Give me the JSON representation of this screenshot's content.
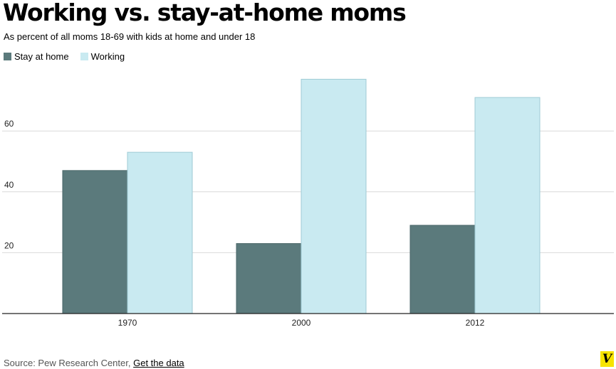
{
  "chart_data": {
    "type": "bar",
    "title": "Working vs. stay-at-home moms",
    "subtitle": "As percent of all moms 18-69 with kids at home and under 18",
    "categories": [
      "1970",
      "2000",
      "2012"
    ],
    "series": [
      {
        "name": "Stay at home",
        "color": "#5b7a7c",
        "values": [
          47,
          23,
          29
        ]
      },
      {
        "name": "Working",
        "color": "#c9eaf1",
        "values": [
          53,
          77,
          71
        ]
      }
    ],
    "y_ticks": [
      "20",
      "40",
      "60"
    ],
    "ylim": [
      0,
      80
    ],
    "grid": true,
    "legend_position": "top-left"
  },
  "footer": {
    "source_text": "Source: Pew Research Center,",
    "link_label": "Get the data"
  },
  "brand": {
    "logo_letter": "V",
    "logo_color": "#f7e400"
  }
}
